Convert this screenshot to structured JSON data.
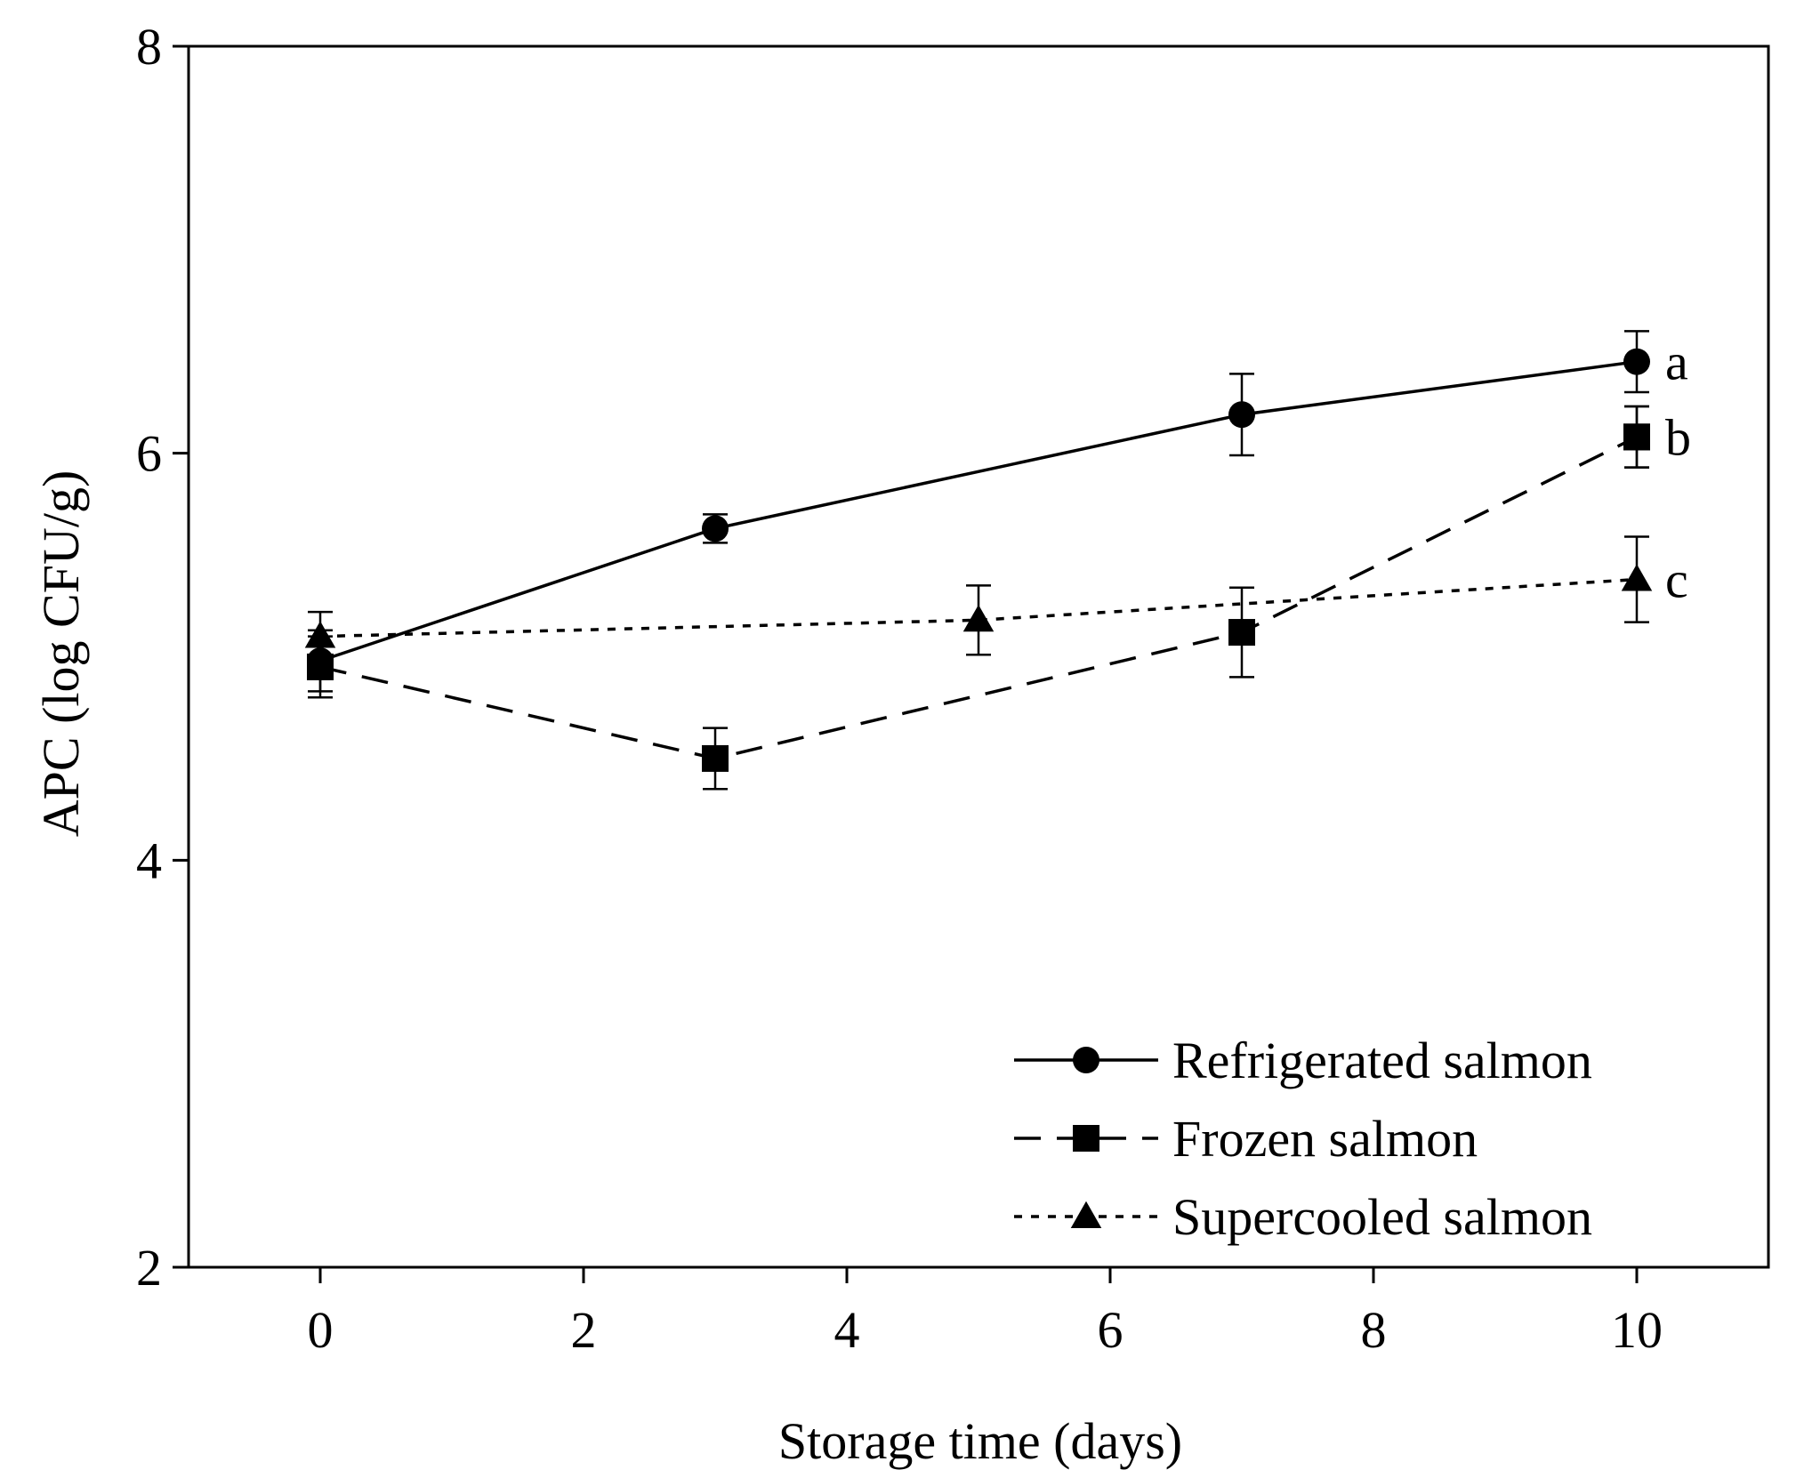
{
  "chart_data": {
    "type": "line",
    "title": "",
    "xlabel": "Storage time (days)",
    "ylabel": "APC (log CFU/g)",
    "xlim": [
      -1,
      11
    ],
    "ylim": [
      2,
      8
    ],
    "xticks": [
      0,
      2,
      4,
      6,
      8,
      10
    ],
    "yticks": [
      2,
      4,
      6,
      8
    ],
    "grid": false,
    "legend_position": "bottom-right",
    "series": [
      {
        "name": "Refrigerated salmon",
        "marker": "circle",
        "linestyle": "solid",
        "x": [
          0,
          3,
          7,
          10
        ],
        "y": [
          4.98,
          5.63,
          6.19,
          6.45
        ],
        "err": [
          0.15,
          0.07,
          0.2,
          0.15
        ],
        "significance": "a"
      },
      {
        "name": "Frozen salmon",
        "marker": "square",
        "linestyle": "dashed",
        "x": [
          0,
          3,
          10,
          7,
          10
        ],
        "y": [
          4.95,
          4.5,
          6.08,
          5.12,
          6.08
        ],
        "err": [
          0.15,
          0.15,
          0.15,
          0.22,
          0.15
        ],
        "significance": "b"
      },
      {
        "name": "Supercooled salmon",
        "marker": "triangle",
        "linestyle": "dotted",
        "x": [
          0,
          5,
          10
        ],
        "y": [
          5.1,
          5.18,
          5.38
        ],
        "err": [
          0.12,
          0.17,
          0.21
        ],
        "significance": "c"
      }
    ]
  }
}
